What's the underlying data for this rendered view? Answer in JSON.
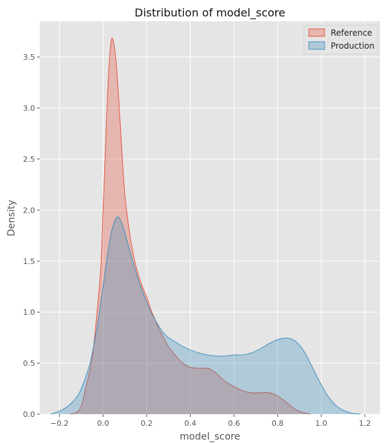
{
  "chart_data": {
    "type": "area",
    "title": "Distribution of model_score",
    "xlabel": "model_score",
    "ylabel": "Density",
    "xlim": [
      -0.29,
      1.27
    ],
    "ylim": [
      0,
      3.85
    ],
    "xticks": [
      -0.2,
      0.0,
      0.2,
      0.4,
      0.6,
      0.8,
      1.0,
      1.2
    ],
    "xtick_labels": [
      "−0.2",
      "0.0",
      "0.2",
      "0.4",
      "0.6",
      "0.8",
      "1.0",
      "1.2"
    ],
    "yticks": [
      0.0,
      0.5,
      1.0,
      1.5,
      2.0,
      2.5,
      3.0,
      3.5
    ],
    "ytick_labels": [
      "0.0",
      "0.5",
      "1.0",
      "1.5",
      "2.0",
      "2.5",
      "3.0",
      "3.5"
    ],
    "grid": true,
    "legend_position": "top-right",
    "series": [
      {
        "name": "Reference",
        "color": "#e24a33",
        "points": [
          [
            -0.15,
            0.0
          ],
          [
            -0.12,
            0.02
          ],
          [
            -0.1,
            0.08
          ],
          [
            -0.08,
            0.25
          ],
          [
            -0.05,
            0.55
          ],
          [
            -0.03,
            0.95
          ],
          [
            -0.01,
            1.45
          ],
          [
            0.0,
            2.0
          ],
          [
            0.01,
            2.55
          ],
          [
            0.02,
            3.1
          ],
          [
            0.03,
            3.5
          ],
          [
            0.04,
            3.68
          ],
          [
            0.05,
            3.62
          ],
          [
            0.06,
            3.45
          ],
          [
            0.07,
            3.15
          ],
          [
            0.08,
            2.8
          ],
          [
            0.09,
            2.45
          ],
          [
            0.1,
            2.15
          ],
          [
            0.12,
            1.8
          ],
          [
            0.14,
            1.55
          ],
          [
            0.16,
            1.38
          ],
          [
            0.18,
            1.25
          ],
          [
            0.2,
            1.15
          ],
          [
            0.22,
            1.02
          ],
          [
            0.24,
            0.92
          ],
          [
            0.26,
            0.82
          ],
          [
            0.28,
            0.74
          ],
          [
            0.3,
            0.66
          ],
          [
            0.33,
            0.58
          ],
          [
            0.36,
            0.51
          ],
          [
            0.4,
            0.46
          ],
          [
            0.44,
            0.45
          ],
          [
            0.48,
            0.45
          ],
          [
            0.5,
            0.43
          ],
          [
            0.53,
            0.38
          ],
          [
            0.56,
            0.32
          ],
          [
            0.6,
            0.27
          ],
          [
            0.64,
            0.23
          ],
          [
            0.68,
            0.21
          ],
          [
            0.72,
            0.21
          ],
          [
            0.76,
            0.21
          ],
          [
            0.79,
            0.19
          ],
          [
            0.82,
            0.15
          ],
          [
            0.85,
            0.1
          ],
          [
            0.88,
            0.05
          ],
          [
            0.91,
            0.02
          ],
          [
            0.95,
            0.0
          ]
        ]
      },
      {
        "name": "Production",
        "color": "#348abd",
        "points": [
          [
            -0.24,
            0.0
          ],
          [
            -0.2,
            0.03
          ],
          [
            -0.16,
            0.08
          ],
          [
            -0.12,
            0.17
          ],
          [
            -0.1,
            0.25
          ],
          [
            -0.08,
            0.36
          ],
          [
            -0.06,
            0.5
          ],
          [
            -0.04,
            0.7
          ],
          [
            -0.02,
            0.96
          ],
          [
            0.0,
            1.25
          ],
          [
            0.02,
            1.55
          ],
          [
            0.04,
            1.8
          ],
          [
            0.06,
            1.92
          ],
          [
            0.07,
            1.93
          ],
          [
            0.08,
            1.9
          ],
          [
            0.1,
            1.78
          ],
          [
            0.12,
            1.62
          ],
          [
            0.14,
            1.47
          ],
          [
            0.16,
            1.33
          ],
          [
            0.18,
            1.21
          ],
          [
            0.2,
            1.1
          ],
          [
            0.22,
            1.0
          ],
          [
            0.24,
            0.92
          ],
          [
            0.26,
            0.85
          ],
          [
            0.28,
            0.79
          ],
          [
            0.3,
            0.75
          ],
          [
            0.33,
            0.71
          ],
          [
            0.36,
            0.67
          ],
          [
            0.4,
            0.63
          ],
          [
            0.44,
            0.6
          ],
          [
            0.48,
            0.58
          ],
          [
            0.52,
            0.57
          ],
          [
            0.56,
            0.57
          ],
          [
            0.6,
            0.58
          ],
          [
            0.64,
            0.58
          ],
          [
            0.68,
            0.6
          ],
          [
            0.72,
            0.64
          ],
          [
            0.76,
            0.69
          ],
          [
            0.8,
            0.73
          ],
          [
            0.83,
            0.745
          ],
          [
            0.86,
            0.74
          ],
          [
            0.89,
            0.7
          ],
          [
            0.92,
            0.62
          ],
          [
            0.95,
            0.5
          ],
          [
            0.98,
            0.37
          ],
          [
            1.01,
            0.25
          ],
          [
            1.04,
            0.15
          ],
          [
            1.07,
            0.08
          ],
          [
            1.1,
            0.04
          ],
          [
            1.14,
            0.01
          ],
          [
            1.18,
            0.0
          ]
        ]
      }
    ]
  }
}
